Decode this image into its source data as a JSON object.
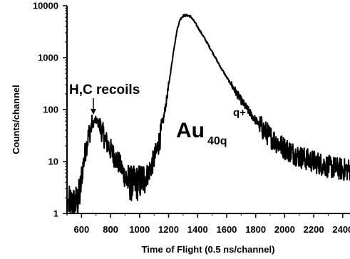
{
  "chart_data": {
    "type": "line",
    "title": "",
    "xlabel": "Time of Flight (0.5 ns/channel)",
    "ylabel": "Counts/channel",
    "xlim": [
      500,
      2450
    ],
    "ylim": [
      1,
      10000
    ],
    "y_scale": "log",
    "grid": false,
    "legend": "none",
    "xticks": [
      600,
      800,
      1000,
      1200,
      1400,
      1600,
      1800,
      2000,
      2200,
      2400
    ],
    "xtick_labels": [
      "600",
      "800",
      "1000",
      "1200",
      "1400",
      "1600",
      "1800",
      "2000",
      "2200",
      "2400"
    ],
    "yticks": [
      1,
      10,
      100,
      1000,
      10000
    ],
    "ytick_labels": [
      "1",
      "10",
      "100",
      "1000",
      "10000"
    ],
    "annotations": {
      "recoils": "H,C recoils",
      "au_base": "Au",
      "au_sub": "40q",
      "au_sup": "q+"
    },
    "series": [
      {
        "line_color": "#000000",
        "x": [
          510,
          540,
          560,
          575,
          590,
          610,
          630,
          650,
          670,
          690,
          700,
          710,
          730,
          750,
          770,
          800,
          830,
          860,
          880,
          900,
          920,
          940,
          960,
          980,
          1000,
          1020,
          1040,
          1060,
          1080,
          1100,
          1120,
          1140,
          1160,
          1180,
          1200,
          1220,
          1240,
          1260,
          1280,
          1300,
          1320,
          1340,
          1350,
          1360,
          1380,
          1400,
          1450,
          1500,
          1550,
          1600,
          1650,
          1700,
          1750,
          1800,
          1850,
          1900,
          1950,
          2000,
          2050,
          2100,
          2150,
          2200,
          2250,
          2300,
          2350,
          2400,
          2450
        ],
        "y": [
          1.5,
          1.5,
          1.6,
          1.8,
          2.5,
          8,
          18,
          33,
          48,
          60,
          62,
          58,
          45,
          33,
          24,
          17,
          12,
          9,
          7,
          5,
          4.2,
          3.8,
          3.7,
          3.8,
          4,
          4.5,
          5,
          6,
          8,
          11,
          17,
          28,
          55,
          120,
          280,
          700,
          1700,
          3600,
          5500,
          6400,
          6500,
          6400,
          6200,
          5800,
          4800,
          3900,
          2300,
          1300,
          720,
          420,
          250,
          150,
          95,
          62,
          42,
          30,
          23,
          18,
          15,
          12.5,
          11,
          10,
          9,
          8,
          7.5,
          7,
          7
        ]
      }
    ]
  }
}
